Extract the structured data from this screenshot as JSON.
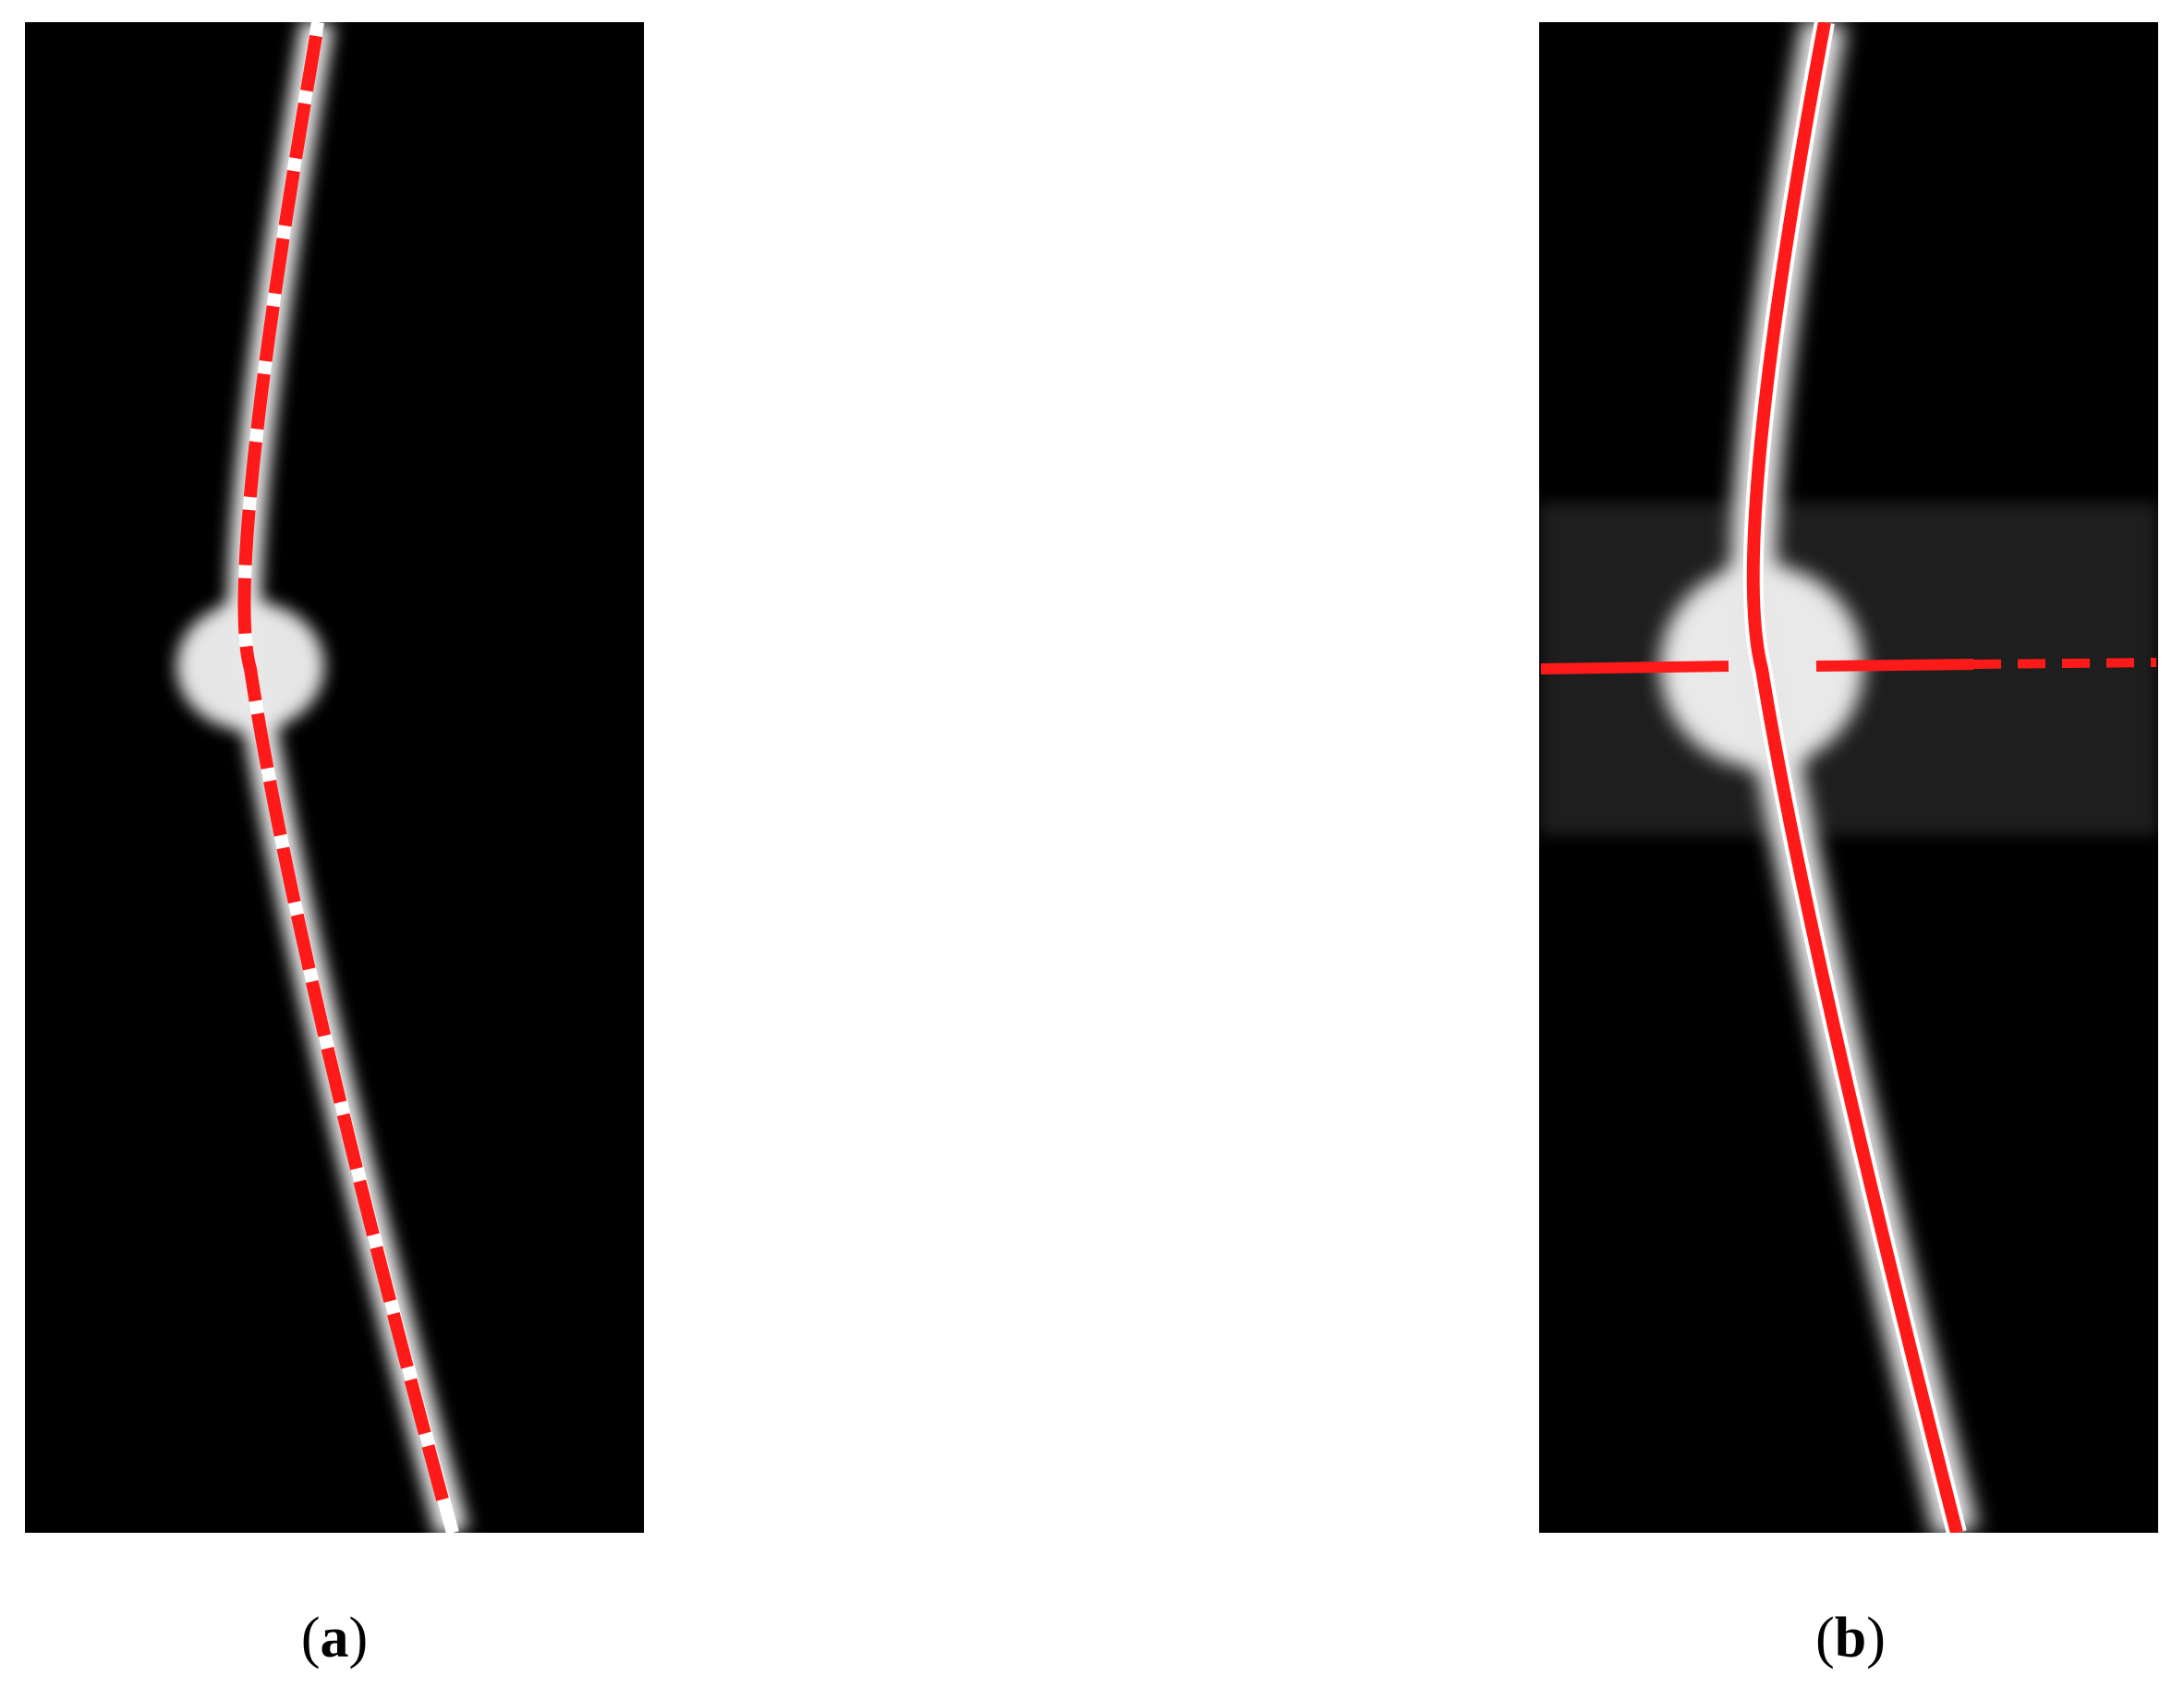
{
  "panels": [
    {
      "label_parts": [
        "(",
        "a",
        ")"
      ]
    },
    {
      "label_parts": [
        "(",
        "b",
        ")"
      ]
    }
  ]
}
